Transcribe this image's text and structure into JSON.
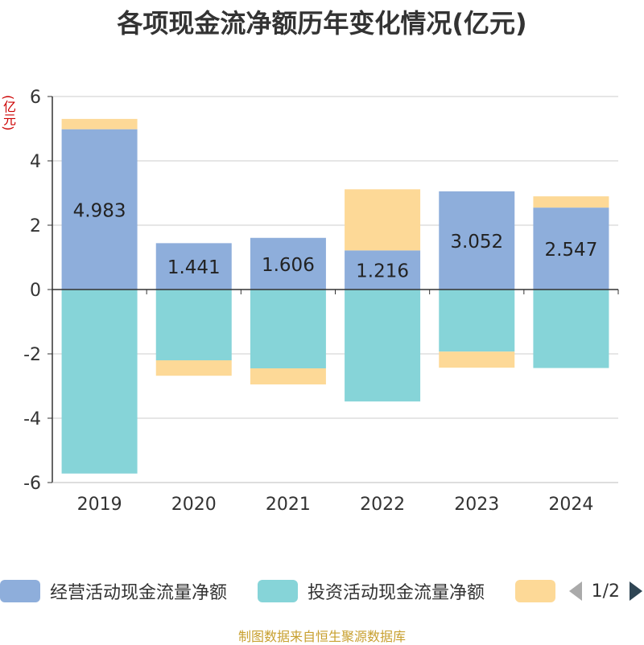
{
  "title": "各项现金流净额历年变化情况(亿元)",
  "unit_label": "(亿元)",
  "footer": "制图数据来自恒生聚源数据库",
  "legend": {
    "items": [
      {
        "label": "经营活动现金流量净额",
        "color": "#8eaedb"
      },
      {
        "label": "投资活动现金流量净额",
        "color": "#86d4d8"
      },
      {
        "label": "",
        "color": "#fdd997"
      }
    ],
    "page_indicator": "1/2"
  },
  "chart_data": {
    "type": "bar",
    "stacked": true,
    "categories": [
      "2019",
      "2020",
      "2021",
      "2022",
      "2023",
      "2024"
    ],
    "ylim": [
      -6,
      6
    ],
    "yticks": [
      6,
      4,
      2,
      0,
      -2,
      -4,
      -6
    ],
    "grid": true,
    "legend_position": "bottom",
    "series": [
      {
        "name": "经营活动现金流量净额",
        "color": "#8eaedb",
        "values": [
          4.983,
          1.441,
          1.606,
          1.216,
          3.052,
          2.547
        ],
        "labels": [
          "4.983",
          "1.441",
          "1.606",
          "1.216",
          "3.052",
          "2.547"
        ]
      },
      {
        "name": "投资活动现金流量净额",
        "color": "#86d4d8",
        "values": [
          -5.72,
          -2.2,
          -2.45,
          -3.48,
          -1.93,
          -2.44
        ]
      },
      {
        "name": "",
        "color": "#fdd997",
        "values": [
          0.32,
          -0.48,
          -0.5,
          1.9,
          -0.5,
          0.35
        ]
      }
    ]
  }
}
